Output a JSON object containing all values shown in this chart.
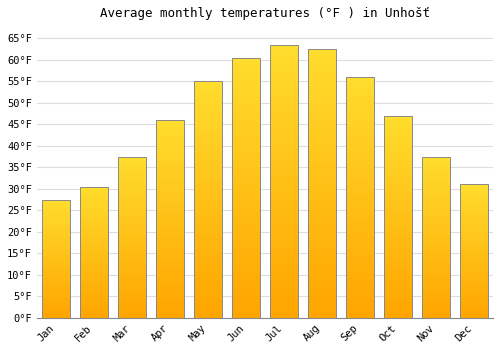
{
  "months": [
    "Jan",
    "Feb",
    "Mar",
    "Apr",
    "May",
    "Jun",
    "Jul",
    "Aug",
    "Sep",
    "Oct",
    "Nov",
    "Dec"
  ],
  "values": [
    27.5,
    30.5,
    37.5,
    46.0,
    55.0,
    60.5,
    63.5,
    62.5,
    56.0,
    47.0,
    37.5,
    31.0
  ],
  "bar_color_top": "#FFC125",
  "bar_color_bottom": "#FFA500",
  "bar_edge_color": "#888888",
  "title": "Average monthly temperatures (°F ) in Unhošť",
  "ylim": [
    0,
    68
  ],
  "yticks": [
    0,
    5,
    10,
    15,
    20,
    25,
    30,
    35,
    40,
    45,
    50,
    55,
    60,
    65
  ],
  "title_fontsize": 9,
  "tick_fontsize": 7.5,
  "background_color": "#ffffff",
  "grid_color": "#dddddd",
  "font_family": "monospace",
  "bar_width": 0.75
}
